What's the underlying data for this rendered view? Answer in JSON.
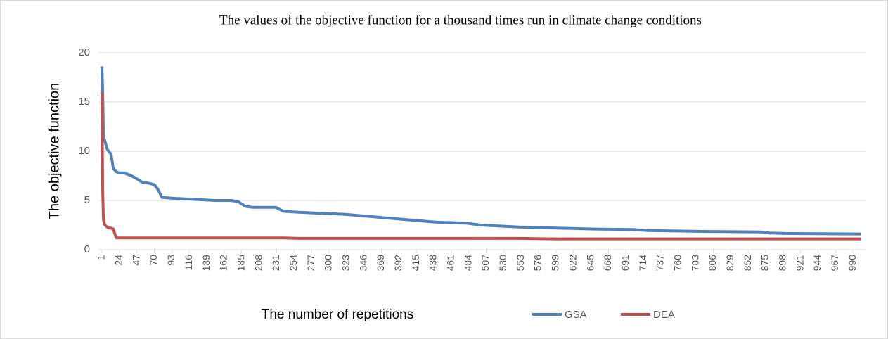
{
  "chart_data": {
    "type": "line",
    "title": "The values of the objective function for a thousand times run in climate change conditions",
    "xlabel": "The number of repetitions",
    "ylabel": "The objective function",
    "x": [
      1,
      2,
      3,
      5,
      8,
      10,
      13,
      16,
      18,
      20,
      24,
      30,
      40,
      47,
      55,
      60,
      70,
      75,
      80,
      100,
      150,
      170,
      180,
      190,
      200,
      230,
      240,
      260,
      290,
      320,
      350,
      380,
      410,
      440,
      480,
      500,
      550,
      600,
      650,
      700,
      720,
      800,
      870,
      880,
      900,
      1000
    ],
    "series": [
      {
        "name": "GSA",
        "color": "#4f81bd",
        "values": [
          18.6,
          16,
          11.5,
          11,
          10.2,
          10,
          9.7,
          8.2,
          8.1,
          7.9,
          7.8,
          7.8,
          7.5,
          7.2,
          6.8,
          6.8,
          6.6,
          6.1,
          5.3,
          5.2,
          5.0,
          5.0,
          4.9,
          4.4,
          4.3,
          4.3,
          3.9,
          3.8,
          3.7,
          3.6,
          3.4,
          3.2,
          3.0,
          2.8,
          2.7,
          2.5,
          2.3,
          2.2,
          2.1,
          2.05,
          1.95,
          1.85,
          1.8,
          1.7,
          1.65,
          1.6
        ]
      },
      {
        "name": "DEA",
        "color": "#c0504d",
        "values": [
          16,
          6,
          3.0,
          2.5,
          2.3,
          2.2,
          2.2,
          2.1,
          1.6,
          1.2,
          1.2,
          1.2,
          1.2,
          1.2,
          1.2,
          1.2,
          1.2,
          1.2,
          1.2,
          1.2,
          1.2,
          1.2,
          1.2,
          1.2,
          1.2,
          1.2,
          1.2,
          1.15,
          1.15,
          1.15,
          1.15,
          1.15,
          1.15,
          1.15,
          1.15,
          1.15,
          1.15,
          1.1,
          1.1,
          1.1,
          1.1,
          1.1,
          1.1,
          1.1,
          1.1,
          1.1
        ]
      }
    ],
    "xlim": [
      1,
      1000
    ],
    "xticks": [
      1,
      24,
      47,
      70,
      93,
      116,
      139,
      162,
      185,
      208,
      231,
      254,
      277,
      300,
      323,
      346,
      369,
      392,
      415,
      438,
      461,
      484,
      507,
      530,
      553,
      576,
      599,
      622,
      645,
      668,
      691,
      714,
      737,
      760,
      783,
      806,
      829,
      852,
      875,
      898,
      921,
      944,
      967,
      990
    ],
    "ylim": [
      0,
      20
    ],
    "yticks": [
      0,
      5,
      10,
      15,
      20
    ],
    "grid": true,
    "legend": "bottom"
  }
}
